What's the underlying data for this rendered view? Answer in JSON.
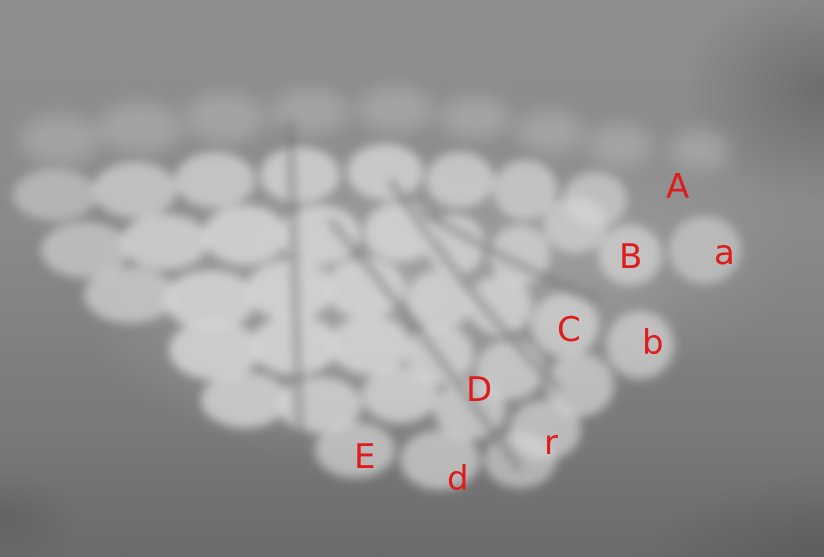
{
  "labels": {
    "A": "A",
    "a": "a",
    "B": "B",
    "b": "b",
    "C": "C",
    "D": "D",
    "r": "r",
    "E": "E",
    "d": "d"
  },
  "label_color": "#e01b1b"
}
